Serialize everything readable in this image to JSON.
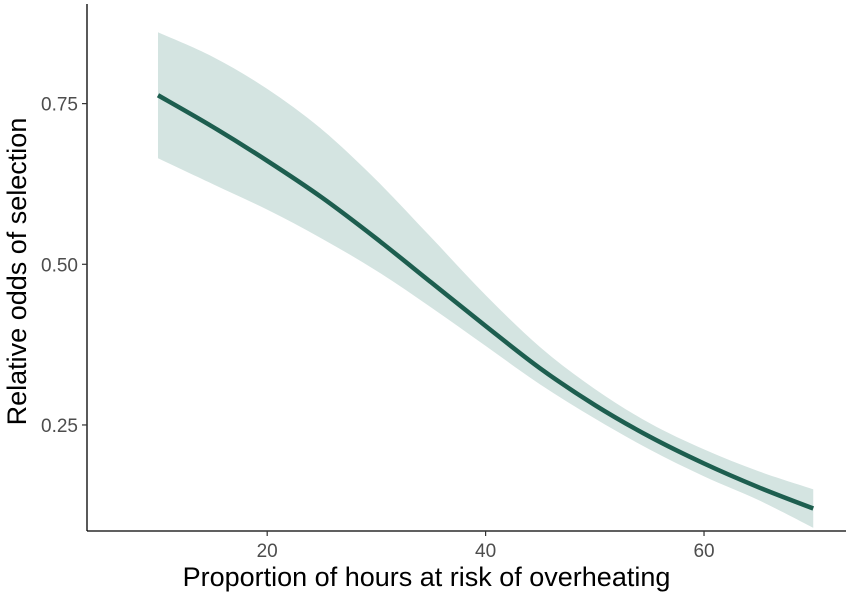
{
  "chart_data": {
    "type": "line",
    "xlabel": "Proportion of hours at risk of overheating",
    "ylabel": "Relative odds of selection",
    "xlim": [
      3.5,
      73
    ],
    "ylim": [
      0.085,
      0.905
    ],
    "x_ticks": [
      20,
      40,
      60
    ],
    "x_tick_labels": [
      "20",
      "40",
      "60"
    ],
    "y_ticks": [
      0.25,
      0.5,
      0.75
    ],
    "y_tick_labels": [
      "0.25",
      "0.50",
      "0.75"
    ],
    "grid": false,
    "legend": "none",
    "series": [
      {
        "x": [
          10,
          15,
          20,
          25,
          30,
          35,
          40,
          45,
          50,
          55,
          60,
          65,
          70
        ],
        "y": [
          0.763,
          0.714,
          0.661,
          0.604,
          0.54,
          0.472,
          0.404,
          0.338,
          0.281,
          0.232,
          0.19,
          0.153,
          0.12
        ],
        "lower": [
          0.665,
          0.625,
          0.585,
          0.54,
          0.49,
          0.433,
          0.373,
          0.313,
          0.26,
          0.212,
          0.17,
          0.133,
          0.09
        ],
        "upper": [
          0.861,
          0.823,
          0.773,
          0.71,
          0.631,
          0.542,
          0.452,
          0.371,
          0.306,
          0.253,
          0.212,
          0.178,
          0.15
        ],
        "color": "#1d5e4f",
        "ribbon_color": "#d4e4e1"
      }
    ]
  }
}
